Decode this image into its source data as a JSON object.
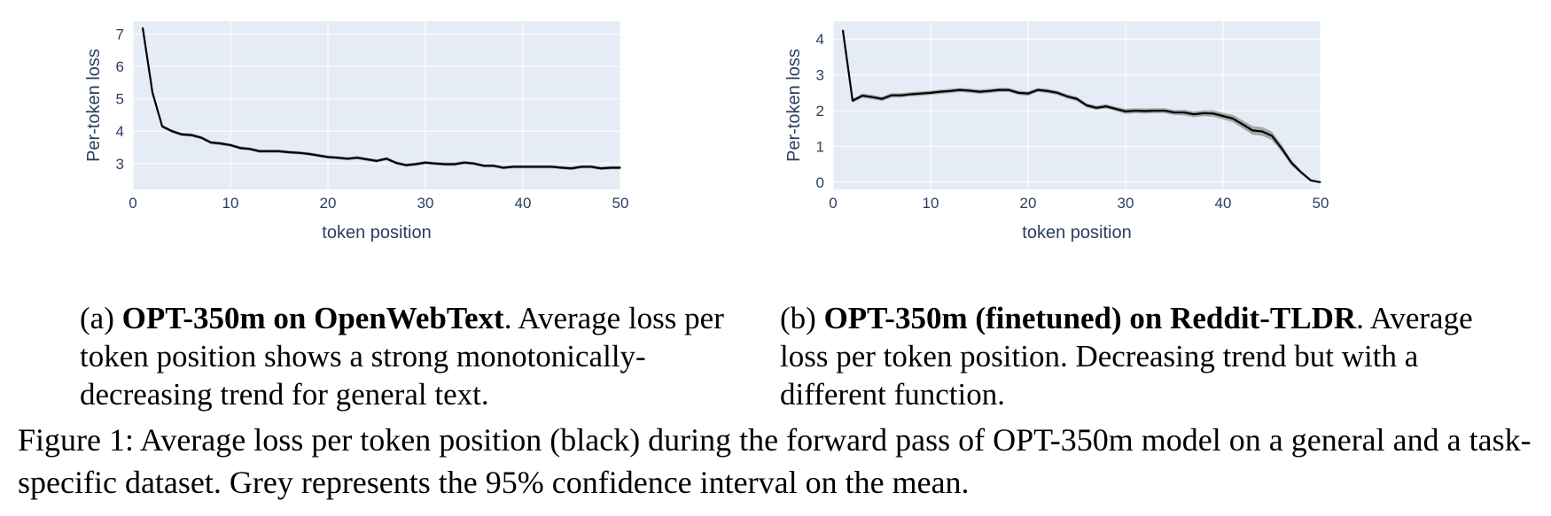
{
  "chart_data": [
    {
      "type": "line",
      "ylabel": "Per-token loss",
      "xlabel": "token position",
      "xlim": [
        0,
        50
      ],
      "ylim": [
        2.2,
        7.4
      ],
      "xticks": [
        0,
        10,
        20,
        30,
        40,
        50
      ],
      "yticks": [
        3,
        4,
        5,
        6,
        7
      ],
      "grid": true,
      "series": [
        {
          "line_color": "#000000",
          "band_color": "#9a9a9a",
          "x": [
            1,
            2,
            3,
            4,
            5,
            6,
            7,
            8,
            9,
            10,
            11,
            12,
            13,
            14,
            15,
            16,
            17,
            18,
            19,
            20,
            21,
            22,
            23,
            24,
            25,
            26,
            27,
            28,
            29,
            30,
            31,
            32,
            33,
            34,
            35,
            36,
            37,
            38,
            39,
            40,
            41,
            42,
            43,
            44,
            45,
            46,
            47,
            48,
            49,
            50
          ],
          "y": [
            7.2,
            5.2,
            4.15,
            4.0,
            3.9,
            3.88,
            3.8,
            3.65,
            3.62,
            3.57,
            3.48,
            3.45,
            3.38,
            3.38,
            3.38,
            3.35,
            3.33,
            3.3,
            3.25,
            3.2,
            3.18,
            3.15,
            3.18,
            3.13,
            3.08,
            3.15,
            3.02,
            2.95,
            2.98,
            3.03,
            3.0,
            2.98,
            2.98,
            3.03,
            3.0,
            2.93,
            2.93,
            2.87,
            2.9,
            2.9,
            2.9,
            2.9,
            2.9,
            2.87,
            2.85,
            2.9,
            2.9,
            2.85,
            2.87,
            2.87
          ],
          "ci": [
            0.05,
            0.05,
            0.05,
            0.05,
            0.05,
            0.05,
            0.05,
            0.05,
            0.05,
            0.05,
            0.05,
            0.05,
            0.05,
            0.05,
            0.05,
            0.05,
            0.05,
            0.05,
            0.05,
            0.05,
            0.05,
            0.05,
            0.05,
            0.05,
            0.05,
            0.05,
            0.05,
            0.05,
            0.05,
            0.05,
            0.05,
            0.05,
            0.05,
            0.05,
            0.05,
            0.05,
            0.05,
            0.05,
            0.05,
            0.05,
            0.05,
            0.05,
            0.05,
            0.05,
            0.05,
            0.05,
            0.05,
            0.05,
            0.05,
            0.05
          ]
        }
      ]
    },
    {
      "type": "line",
      "ylabel": "Per-token loss",
      "xlabel": "token position",
      "xlim": [
        0,
        50
      ],
      "ylim": [
        -0.2,
        4.5
      ],
      "xticks": [
        0,
        10,
        20,
        30,
        40,
        50
      ],
      "yticks": [
        0,
        1,
        2,
        3,
        4
      ],
      "grid": true,
      "series": [
        {
          "line_color": "#000000",
          "band_color": "#9a9a9a",
          "x": [
            1,
            2,
            3,
            4,
            5,
            6,
            7,
            8,
            9,
            10,
            11,
            12,
            13,
            14,
            15,
            16,
            17,
            18,
            19,
            20,
            21,
            22,
            23,
            24,
            25,
            26,
            27,
            28,
            29,
            30,
            31,
            32,
            33,
            34,
            35,
            36,
            37,
            38,
            39,
            40,
            41,
            42,
            43,
            44,
            45,
            46,
            47,
            48,
            49,
            50
          ],
          "y": [
            4.25,
            2.28,
            2.42,
            2.38,
            2.33,
            2.43,
            2.43,
            2.46,
            2.48,
            2.5,
            2.53,
            2.55,
            2.58,
            2.56,
            2.53,
            2.55,
            2.58,
            2.58,
            2.5,
            2.48,
            2.58,
            2.55,
            2.5,
            2.4,
            2.33,
            2.15,
            2.08,
            2.12,
            2.05,
            1.98,
            2.0,
            1.99,
            2.0,
            2.0,
            1.95,
            1.95,
            1.9,
            1.93,
            1.92,
            1.85,
            1.78,
            1.62,
            1.45,
            1.42,
            1.3,
            0.95,
            0.55,
            0.28,
            0.05,
            0.0
          ],
          "ci": [
            0.04,
            0.05,
            0.06,
            0.06,
            0.06,
            0.06,
            0.06,
            0.06,
            0.06,
            0.06,
            0.06,
            0.06,
            0.06,
            0.06,
            0.06,
            0.06,
            0.06,
            0.06,
            0.06,
            0.06,
            0.06,
            0.06,
            0.06,
            0.06,
            0.06,
            0.06,
            0.06,
            0.06,
            0.06,
            0.07,
            0.07,
            0.07,
            0.07,
            0.07,
            0.07,
            0.08,
            0.08,
            0.08,
            0.09,
            0.09,
            0.1,
            0.11,
            0.12,
            0.12,
            0.12,
            0.1,
            0.08,
            0.05,
            0.03,
            0.01
          ]
        }
      ]
    }
  ],
  "captions": {
    "a_prefix": "(a) ",
    "a_bold": "OPT-350m on OpenWebText",
    "a_rest": ". Average loss per token position shows a strong monotonically-decreasing trend for general text.",
    "b_prefix": "(b) ",
    "b_bold": "OPT-350m (finetuned) on Reddit-TLDR",
    "b_rest": ". Average loss per token position. Decreasing trend but with a different function.",
    "figure": "Figure 1: Average loss per token position (black) during the forward pass of OPT-350m model on a general and a task-specific dataset. Grey represents the 95% confidence interval on the mean."
  },
  "colors": {
    "plot_bg": "#e5ecf6",
    "grid": "#ffffff",
    "tick_text": "#2a3f5f",
    "line": "#000000",
    "band": "#9a9a9a"
  }
}
